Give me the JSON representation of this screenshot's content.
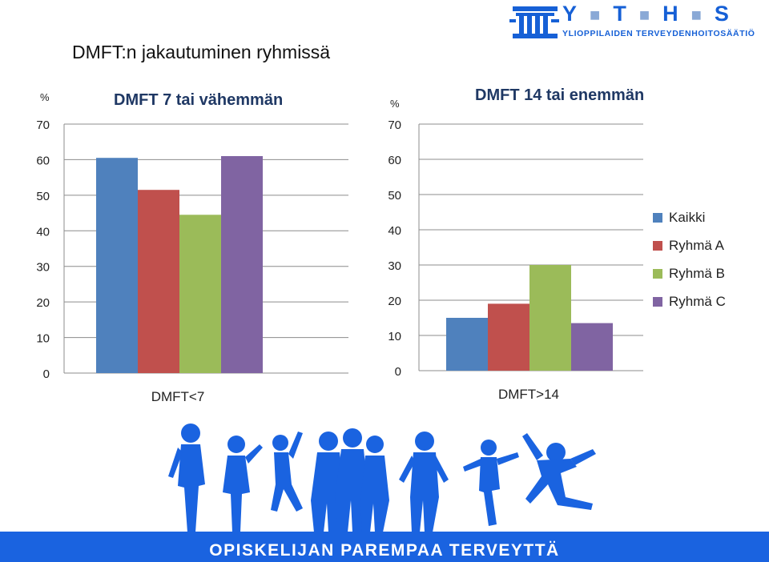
{
  "slide": {
    "title": "DMFT:n jakautuminen ryhmissä",
    "footer": "OPISKELIJAN PAREMPAA TERVEYTTÄ"
  },
  "logo": {
    "name_letters": [
      "Y",
      "T",
      "H",
      "S"
    ],
    "subtitle": "YLIOPPILAIDEN TERVEYDENHOITOSÄÄTIÖ",
    "icon": "pillar-logo-icon",
    "color": "#1660d6"
  },
  "legend": {
    "placement": "right",
    "items": [
      {
        "label": "Kaikki",
        "color": "#4f81bd"
      },
      {
        "label": "Ryhmä A",
        "color": "#c0504d"
      },
      {
        "label": "Ryhmä B",
        "color": "#9bbb59"
      },
      {
        "label": "Ryhmä C",
        "color": "#8064a2"
      }
    ]
  },
  "decoration": {
    "silhouettes_icon": "people-silhouettes-icon",
    "silhouette_color": "#1a63e0"
  },
  "chart_data": [
    {
      "type": "bar",
      "title": "DMFT 7 tai vähemmän",
      "ylabel": "%",
      "categories": [
        "DMFT<7"
      ],
      "ylim": [
        0,
        70
      ],
      "yticks": [
        0,
        10,
        20,
        30,
        40,
        50,
        60,
        70
      ],
      "grid": true,
      "series": [
        {
          "name": "Kaikki",
          "values": [
            60.5
          ]
        },
        {
          "name": "Ryhmä A",
          "values": [
            51.5
          ]
        },
        {
          "name": "Ryhmä B",
          "values": [
            44.5
          ]
        },
        {
          "name": "Ryhmä C",
          "values": [
            61
          ]
        }
      ]
    },
    {
      "type": "bar",
      "title": "DMFT 14 tai enemmän",
      "ylabel": "%",
      "categories": [
        "DMFT>14"
      ],
      "ylim": [
        0,
        70
      ],
      "yticks": [
        0,
        10,
        20,
        30,
        40,
        50,
        60,
        70
      ],
      "grid": true,
      "series": [
        {
          "name": "Kaikki",
          "values": [
            15
          ]
        },
        {
          "name": "Ryhmä A",
          "values": [
            19
          ]
        },
        {
          "name": "Ryhmä B",
          "values": [
            30
          ]
        },
        {
          "name": "Ryhmä C",
          "values": [
            13.5
          ]
        }
      ]
    }
  ]
}
